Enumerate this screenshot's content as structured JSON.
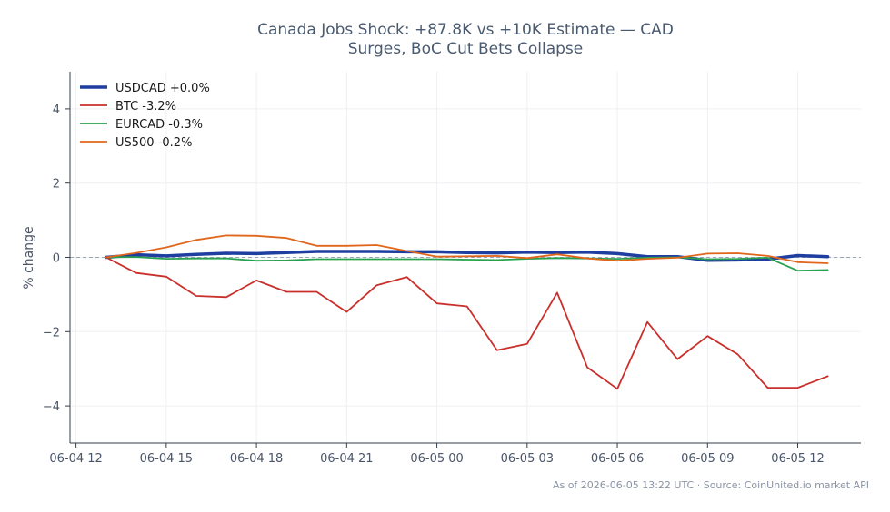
{
  "chart_data": {
    "type": "line",
    "title_lines": [
      "Canada Jobs Shock: +87.8K vs +10K Estimate — CAD",
      "Surges, BoC Cut Bets Collapse"
    ],
    "xlabel": "",
    "ylabel": "% change",
    "x_tick_labels": [
      "06-04 12",
      "06-04 15",
      "06-04 18",
      "06-04 21",
      "06-05 00",
      "06-05 03",
      "06-05 06",
      "06-05 09",
      "06-05 12"
    ],
    "x_ticks": [
      "2026-06-04 12:00",
      "2026-06-04 15:00",
      "2026-06-04 18:00",
      "2026-06-04 21:00",
      "2026-06-05 00:00",
      "2026-06-05 03:00",
      "2026-06-05 06:00",
      "2026-06-05 09:00",
      "2026-06-05 12:00"
    ],
    "xlim": [
      "2026-06-04 11:48",
      "2026-06-05 14:06"
    ],
    "ylim": [
      -5,
      5
    ],
    "y_ticks": [
      -4,
      -2,
      0,
      2,
      4
    ],
    "y_tick_labels": [
      "−4",
      "−2",
      "0",
      "2",
      "4"
    ],
    "grid": true,
    "legend_position": "top-left",
    "baseline": 0,
    "x": [
      "2026-06-04 13:00",
      "2026-06-04 14:00",
      "2026-06-04 15:00",
      "2026-06-04 16:00",
      "2026-06-04 17:00",
      "2026-06-04 18:00",
      "2026-06-04 19:00",
      "2026-06-04 20:00",
      "2026-06-04 21:00",
      "2026-06-04 22:00",
      "2026-06-04 23:00",
      "2026-06-05 00:00",
      "2026-06-05 01:00",
      "2026-06-05 02:00",
      "2026-06-05 03:00",
      "2026-06-05 04:00",
      "2026-06-05 05:00",
      "2026-06-05 06:00",
      "2026-06-05 07:00",
      "2026-06-05 08:00",
      "2026-06-05 09:00",
      "2026-06-05 10:00",
      "2026-06-05 11:00",
      "2026-06-05 12:00",
      "2026-06-05 13:00"
    ],
    "series": [
      {
        "name": "USDCAD +0.0%",
        "color": "#1f3fa0",
        "width": 3.5,
        "values": [
          0.0,
          0.07,
          0.04,
          0.08,
          0.11,
          0.1,
          0.13,
          0.16,
          0.16,
          0.16,
          0.15,
          0.15,
          0.13,
          0.12,
          0.14,
          0.13,
          0.14,
          0.1,
          0.02,
          0.02,
          -0.08,
          -0.07,
          -0.05,
          0.05,
          0.02
        ]
      },
      {
        "name": "BTC -3.2%",
        "color": "#c9302c",
        "width": 1.8,
        "values": [
          0.0,
          -0.42,
          -0.52,
          -1.04,
          -1.07,
          -0.62,
          -0.93,
          -0.93,
          -1.47,
          -0.75,
          -0.53,
          -1.24,
          -1.32,
          -2.5,
          -2.33,
          -0.95,
          -2.96,
          -3.54,
          -1.74,
          -2.74,
          -2.12,
          -2.61,
          -3.51,
          -3.51,
          -3.2
        ]
      },
      {
        "name": "EURCAD -0.3%",
        "color": "#2aa150",
        "width": 1.8,
        "values": [
          0.0,
          0.01,
          -0.04,
          -0.03,
          -0.03,
          -0.09,
          -0.08,
          -0.05,
          -0.05,
          -0.05,
          -0.05,
          -0.05,
          -0.06,
          -0.07,
          -0.04,
          -0.02,
          -0.03,
          -0.04,
          -0.01,
          0.0,
          -0.05,
          -0.04,
          -0.01,
          -0.36,
          -0.34
        ]
      },
      {
        "name": "US500 -0.2%",
        "color": "#e0661c",
        "width": 1.8,
        "values": [
          0.0,
          0.12,
          0.27,
          0.47,
          0.59,
          0.58,
          0.52,
          0.31,
          0.31,
          0.33,
          0.17,
          0.02,
          0.03,
          0.04,
          -0.02,
          0.08,
          -0.03,
          -0.09,
          -0.04,
          -0.01,
          0.1,
          0.11,
          0.04,
          -0.13,
          -0.16
        ]
      }
    ]
  },
  "footer": "As of 2026-06-05 13:22 UTC · Source: CoinUnited.io market API"
}
